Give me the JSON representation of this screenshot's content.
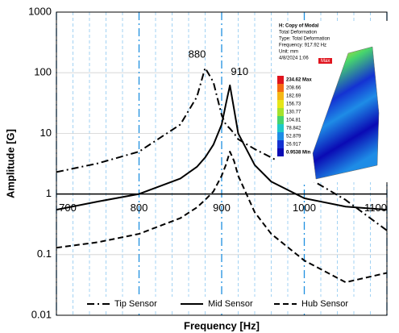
{
  "chart_data": {
    "type": "line",
    "x_label": "Frequency [Hz]",
    "y_label": "Amplitude [G]",
    "log_y": true,
    "xlim": [
      700,
      1100
    ],
    "ylim": [
      0.01,
      1000
    ],
    "xticks": [
      700,
      800,
      900,
      1000,
      1100
    ],
    "yticks": [
      0.01,
      0.1,
      1,
      10,
      100,
      1000
    ],
    "xminor": [
      720,
      740,
      760,
      780,
      820,
      840,
      860,
      880,
      920,
      940,
      960,
      980,
      1020,
      1040,
      1060,
      1080
    ],
    "grid": true,
    "legend": "bottom",
    "x": [
      700,
      750,
      800,
      850,
      870,
      880,
      890,
      900,
      905,
      910,
      915,
      920,
      940,
      960,
      1000,
      1050,
      1100
    ],
    "series": [
      {
        "name": "Tip Sensor",
        "color": "#000000",
        "dash": "dashdot",
        "values": [
          2.3,
          3.2,
          5,
          14,
          40,
          120,
          70,
          20,
          14,
          12,
          10,
          8,
          5.5,
          4,
          2,
          0.8,
          0.25
        ]
      },
      {
        "name": "Mid Sensor",
        "color": "#000000",
        "dash": "solid",
        "values": [
          0.55,
          0.75,
          1.0,
          1.8,
          2.8,
          4,
          6.5,
          14,
          30,
          62,
          25,
          10,
          3,
          1.6,
          0.85,
          0.62,
          0.55
        ]
      },
      {
        "name": "Hub Sensor",
        "color": "#000000",
        "dash": "dashed",
        "values": [
          0.13,
          0.16,
          0.22,
          0.4,
          0.6,
          0.8,
          1.1,
          2,
          3,
          5,
          3.5,
          2,
          0.5,
          0.22,
          0.08,
          0.035,
          0.05
        ]
      }
    ],
    "annotations": [
      {
        "text": "880",
        "x": 880,
        "y": 120
      },
      {
        "text": "910",
        "x": 910,
        "y": 62
      }
    ],
    "inset": {
      "lines": [
        "H: Copy of Modal",
        "Total Deformation",
        "Type: Total Deformation",
        "Frequency: 917.92 Hz",
        "Unit: mm",
        "4/8/2024 1:06"
      ],
      "max_tag": "Max",
      "legend_labels": [
        "234.62 Max",
        "208.66",
        "182.69",
        "156.73",
        "130.77",
        "104.81",
        "78.842",
        "52.879",
        "26.917",
        "0.9538 Min"
      ],
      "legend_colors": [
        "#e0141e",
        "#f56a12",
        "#f5b716",
        "#e6e619",
        "#a6e22c",
        "#46d46e",
        "#1ec9c9",
        "#1e8ce6",
        "#1432d2",
        "#0a0ab4"
      ]
    }
  }
}
